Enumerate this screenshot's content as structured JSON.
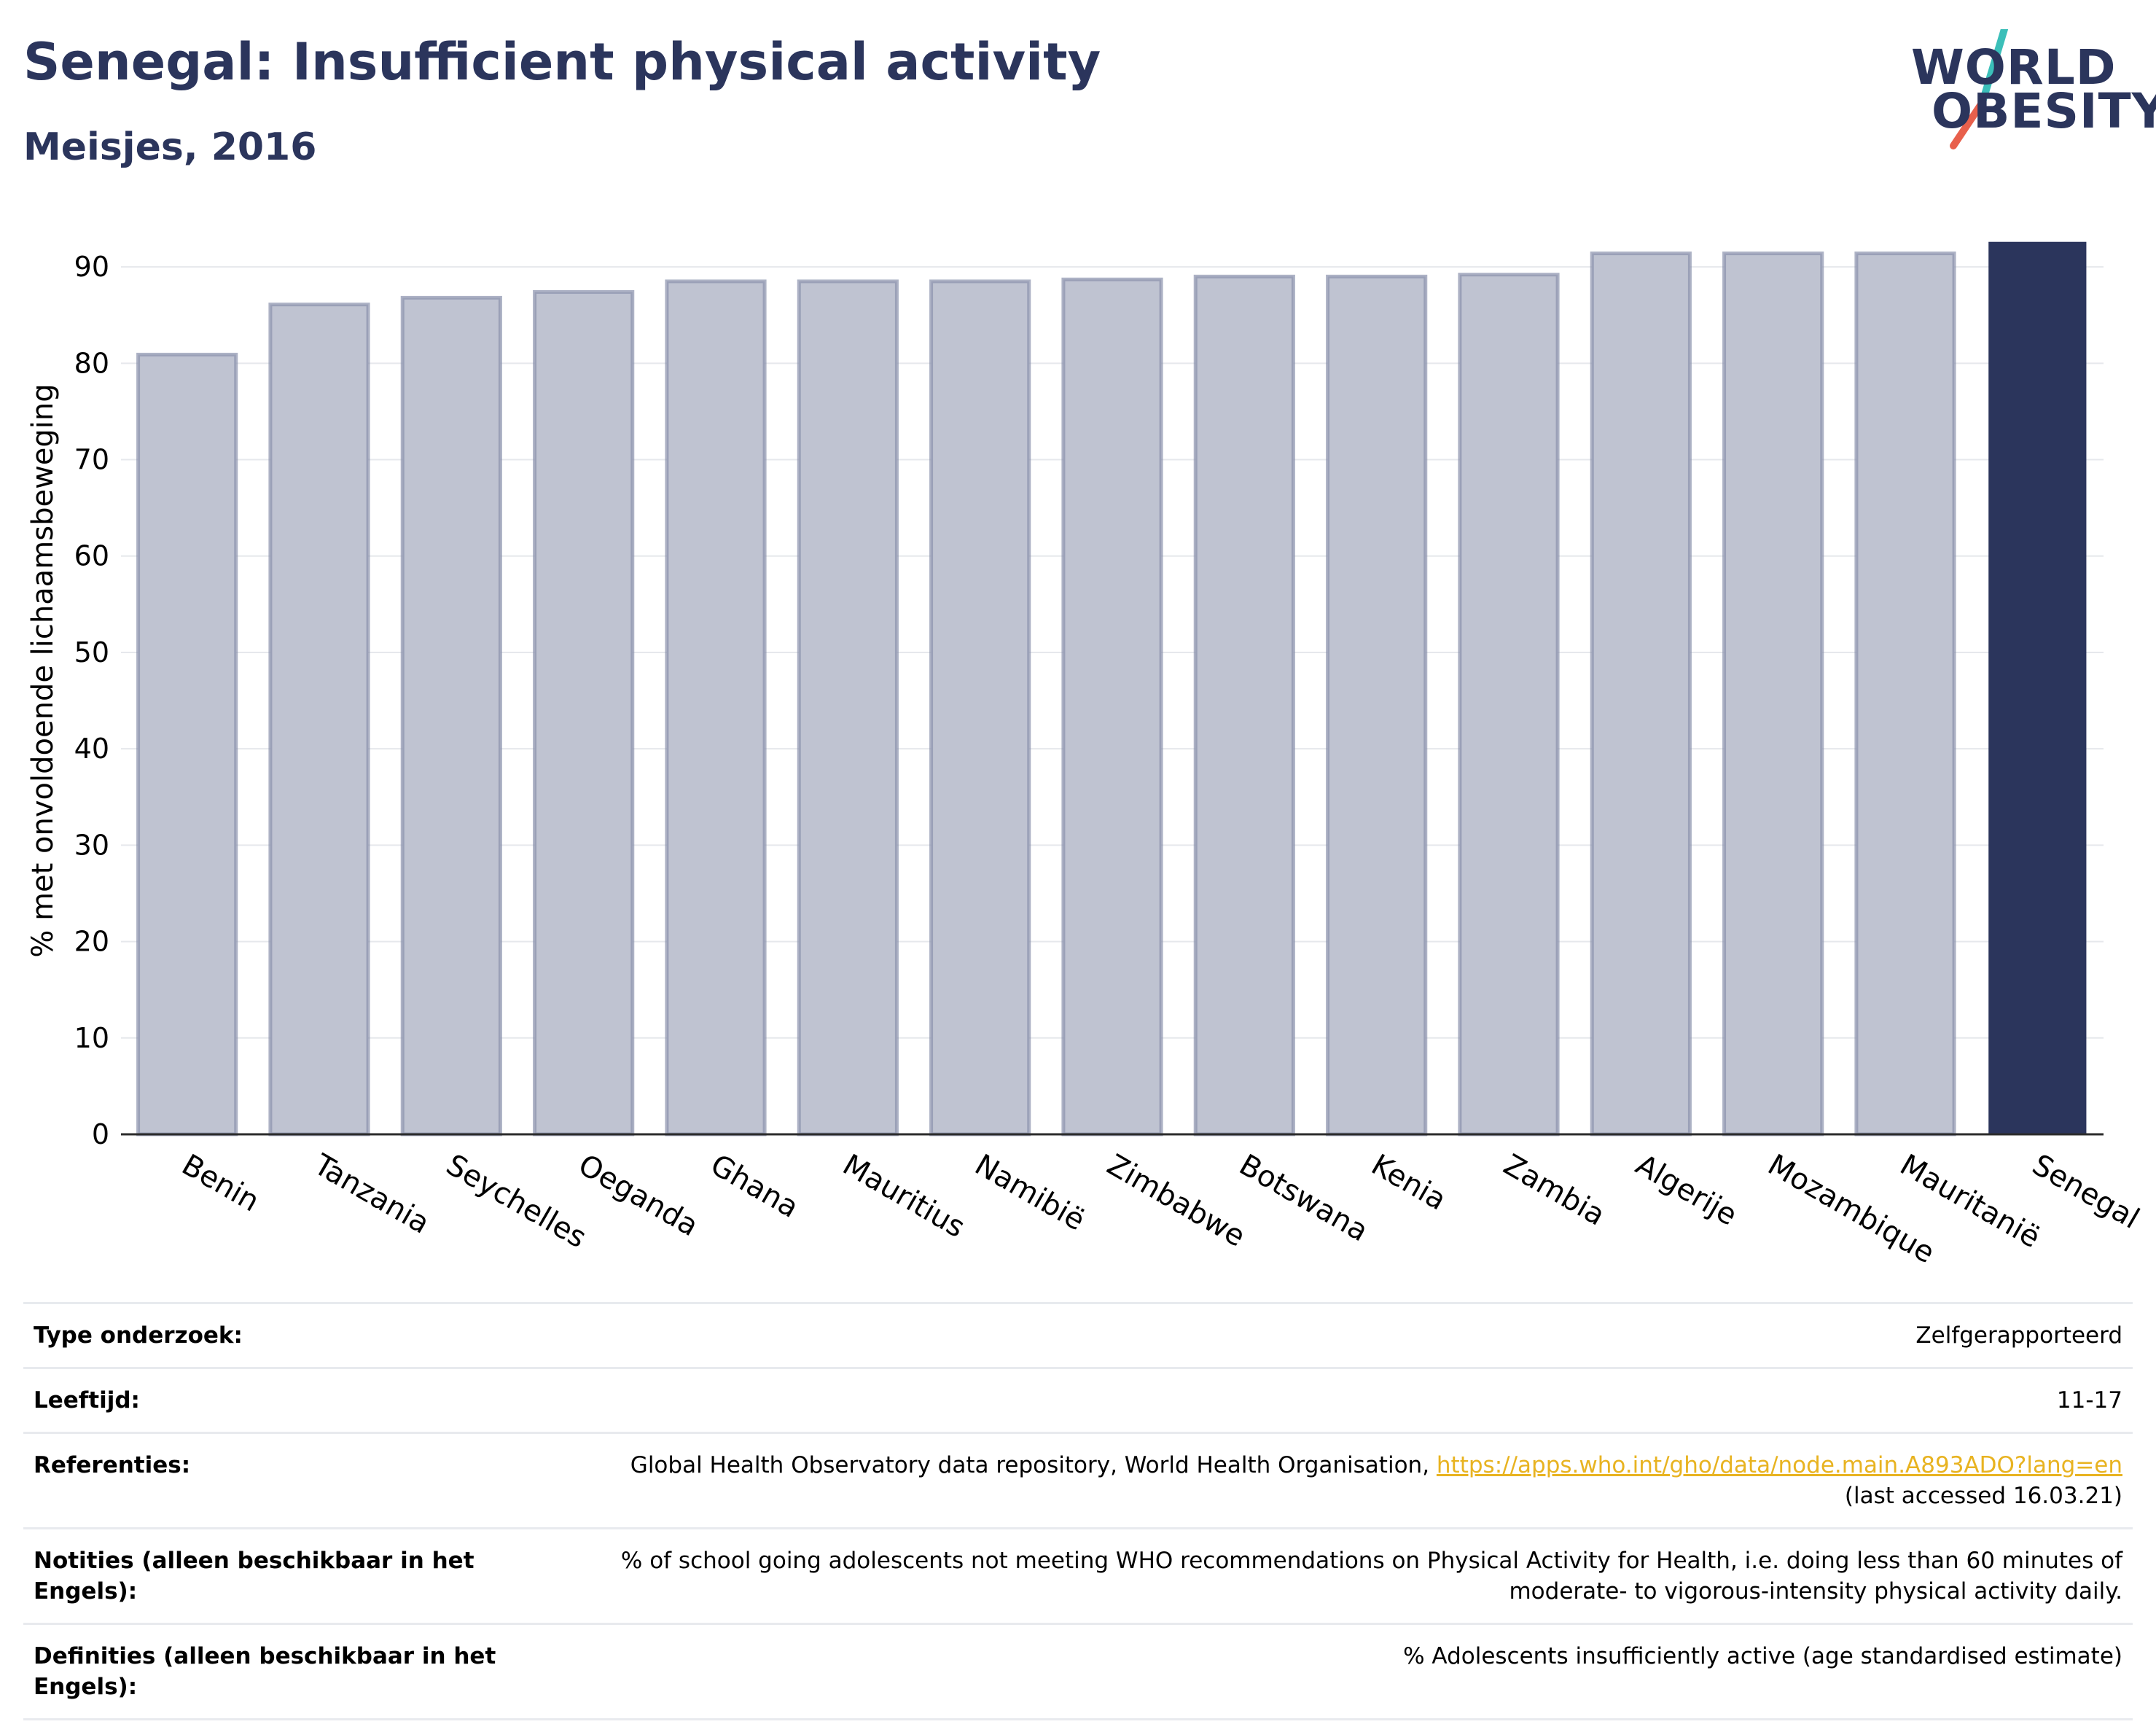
{
  "header": {
    "title": "Senegal: Insufficient physical activity",
    "subtitle": "Meisjes, 2016"
  },
  "logo": {
    "line1": "WORLD",
    "line2": "OBESITY",
    "accent_teal": "#3bbfb9",
    "accent_red": "#e8604c"
  },
  "colors": {
    "bar_default": "#bfc3d1",
    "bar_border": "#8a92ad",
    "bar_highlight": "#2b355c",
    "text_dark": "#2b355c",
    "link": "#e8b321"
  },
  "chart_data": {
    "type": "bar",
    "categories": [
      "Benin",
      "Tanzania",
      "Seychelles",
      "Oeganda",
      "Ghana",
      "Mauritius",
      "Namibië",
      "Zimbabwe",
      "Botswana",
      "Kenia",
      "Zambia",
      "Algerije",
      "Mozambique",
      "Mauritanië",
      "Senegal"
    ],
    "values": [
      80.9,
      86.1,
      86.8,
      87.4,
      88.5,
      88.5,
      88.5,
      88.7,
      89.0,
      89.0,
      89.2,
      91.4,
      91.4,
      91.4,
      92.6
    ],
    "highlight": "Senegal",
    "ylabel": "% met onvoldoende lichaamsbeweging",
    "xlabel": "",
    "ylim": [
      0,
      95
    ],
    "yticks": [
      0,
      10,
      20,
      30,
      40,
      50,
      60,
      70,
      80,
      90
    ],
    "grid": true
  },
  "info": [
    {
      "label": "Type onderzoek:",
      "value": "Zelfgerapporteerd"
    },
    {
      "label": "Leeftijd:",
      "value": "11-17"
    },
    {
      "label": "Referenties:",
      "value": "Global Health Observatory data repository, World Health Organisation, ",
      "link": "https://apps.who.int/gho/data/node.main.A893ADO?lang=en",
      "value_after": "(last accessed 16.03.21)"
    },
    {
      "label": "Notities (alleen beschikbaar in het Engels):",
      "value": "% of school going adolescents not meeting WHO recommendations on Physical Activity for Health, i.e. doing less than 60 minutes of moderate- to vigorous-intensity physical activity daily."
    },
    {
      "label": "Definities (alleen beschikbaar in het Engels):",
      "value": "% Adolescents insufficiently active (age standardised estimate)"
    }
  ]
}
